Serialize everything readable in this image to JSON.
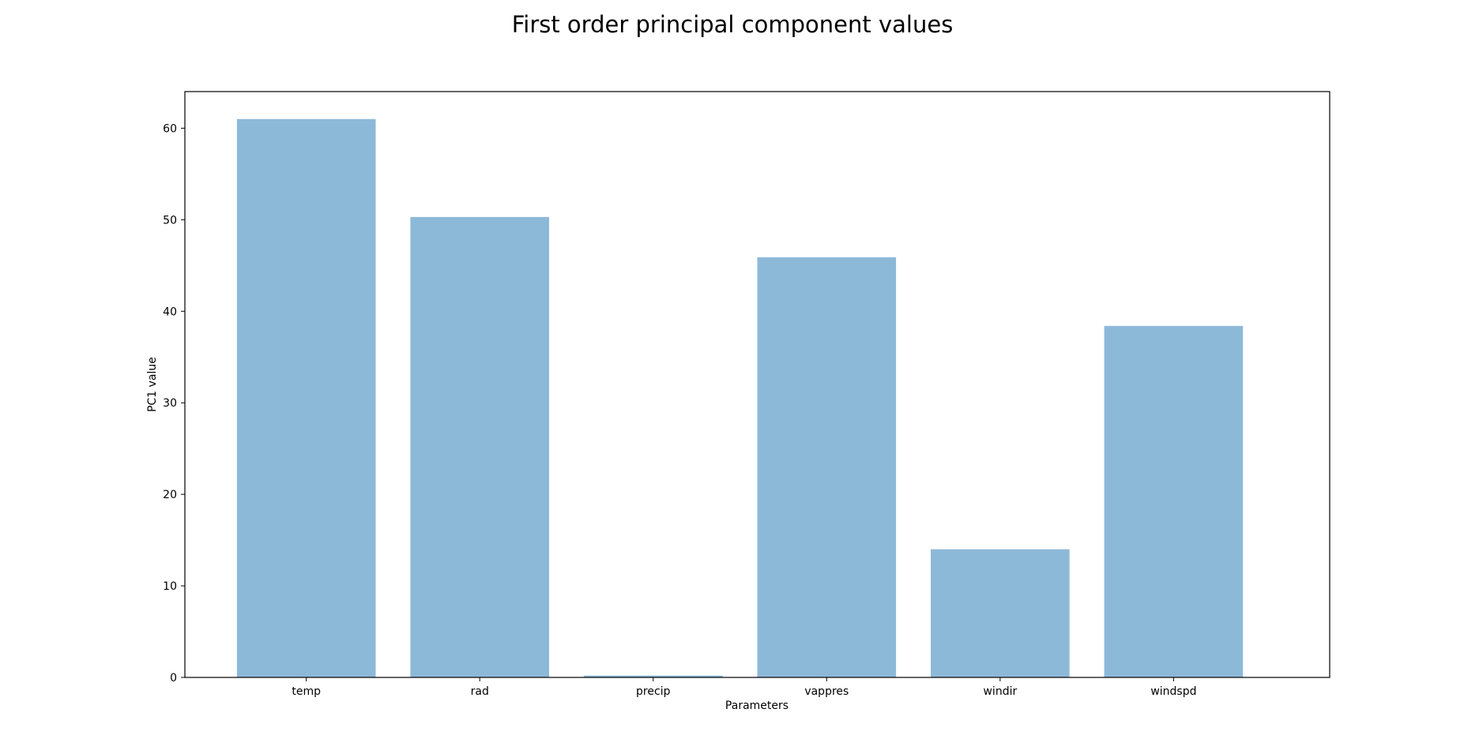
{
  "chart_data": {
    "type": "bar",
    "title": "First order principal component values",
    "xlabel": "Parameters",
    "ylabel": "PC1 value",
    "categories": [
      "temp",
      "rad",
      "precip",
      "vappres",
      "windir",
      "windspd"
    ],
    "values": [
      61.0,
      50.3,
      0.2,
      45.9,
      14.0,
      38.4
    ],
    "ylim": [
      0,
      64
    ],
    "yticks": [
      0,
      10,
      20,
      30,
      40,
      50,
      60
    ],
    "grid": false,
    "legend": "none",
    "bar_color": "#8db9d9"
  }
}
